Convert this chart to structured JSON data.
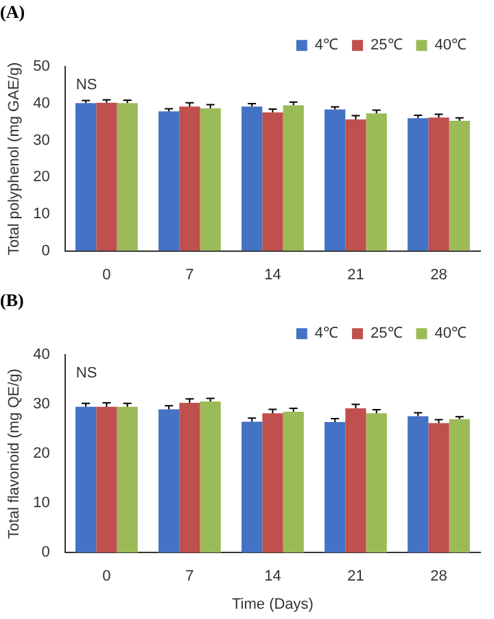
{
  "chart_data": [
    {
      "type": "bar",
      "title": "(A)",
      "ylabel": "Total polyphenol (mg GAE/g)",
      "categories": [
        "0",
        "7",
        "14",
        "21",
        "28"
      ],
      "ylim": [
        0,
        50
      ],
      "yticks": [
        0,
        10,
        20,
        30,
        40,
        50
      ],
      "grid": false,
      "legend": "top right",
      "annotations": [
        "NS"
      ],
      "series": [
        {
          "name": "4℃",
          "color": "#4472c4",
          "values": [
            40.1,
            37.9,
            39.2,
            38.4,
            36.0
          ],
          "errors": [
            0.7,
            0.7,
            0.8,
            0.7,
            0.8
          ]
        },
        {
          "name": "25℃",
          "color": "#c0504d",
          "values": [
            40.2,
            39.2,
            37.6,
            35.7,
            36.2
          ],
          "errors": [
            0.8,
            1.0,
            0.9,
            1.0,
            0.9
          ]
        },
        {
          "name": "40℃",
          "color": "#9bbb59",
          "values": [
            40.1,
            38.7,
            39.5,
            37.3,
            35.3
          ],
          "errors": [
            0.8,
            1.0,
            0.9,
            0.9,
            0.8
          ]
        }
      ]
    },
    {
      "type": "bar",
      "title": "(B)",
      "xlabel": "Time (Days)",
      "ylabel": "Total flavonoid (mg QE/g)",
      "categories": [
        "0",
        "7",
        "14",
        "21",
        "28"
      ],
      "ylim": [
        0,
        40
      ],
      "yticks": [
        0,
        10,
        20,
        30,
        40
      ],
      "grid": false,
      "legend": "top right",
      "annotations": [
        "NS"
      ],
      "series": [
        {
          "name": "4℃",
          "color": "#4472c4",
          "values": [
            29.5,
            29.0,
            26.5,
            26.4,
            27.6
          ],
          "errors": [
            0.7,
            0.7,
            0.7,
            0.7,
            0.7
          ]
        },
        {
          "name": "25℃",
          "color": "#c0504d",
          "values": [
            29.5,
            30.3,
            28.2,
            29.2,
            26.2
          ],
          "errors": [
            0.8,
            0.8,
            0.8,
            0.8,
            0.7
          ]
        },
        {
          "name": "40℃",
          "color": "#9bbb59",
          "values": [
            29.5,
            30.6,
            28.5,
            28.2,
            27.0
          ],
          "errors": [
            0.7,
            0.6,
            0.7,
            0.7,
            0.5
          ]
        }
      ]
    }
  ]
}
